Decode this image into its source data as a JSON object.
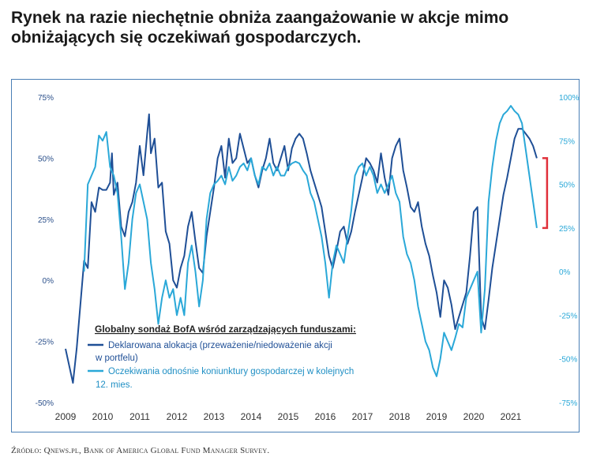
{
  "title": "Rynek na razie niechętnie obniża zaangażowanie w akcje mimo obniżających się oczekiwań gospodarczych.",
  "source": "Źródło: Qnews.pl, Bank of America Global Fund Manager Survey.",
  "colors": {
    "series1": "#1f4f96",
    "series2": "#2aa8d8",
    "bracket": "#e0303a",
    "border": "#4a7fb5"
  },
  "chart_data": {
    "type": "line",
    "title": "",
    "legend": {
      "title": "Globalny sondaż BofA wśród zarządzających funduszami:",
      "items": [
        {
          "line1": "Deklarowana alokacja (przeważenie/niedoważenie akcji",
          "line2": "w portfelu)"
        },
        {
          "line1": "Oczekiwania odnośnie koniunktury gospodarczej w kolejnych",
          "line2": "12. mies."
        }
      ],
      "placement": "bottom-left"
    },
    "x_ticks": [
      "2009",
      "2010",
      "2011",
      "2012",
      "2013",
      "2014",
      "2015",
      "2016",
      "2017",
      "2018",
      "2019",
      "2020",
      "2021"
    ],
    "y_left": {
      "label": "",
      "ylim": [
        -50,
        75
      ],
      "ticks": [
        "75%",
        "50%",
        "25%",
        "0%",
        "-25%",
        "-50%"
      ]
    },
    "y_right": {
      "label": "",
      "ylim": [
        -75,
        100
      ],
      "ticks": [
        "100%",
        "75%",
        "50%",
        "25%",
        "0%",
        "-25%",
        "-50%",
        "-75%"
      ]
    },
    "series": [
      {
        "name": "Deklarowana alokacja (przeważenie/niedoważenie akcji w portfelu)",
        "axis": "left",
        "points": [
          [
            2009.0,
            -28
          ],
          [
            2009.1,
            -35
          ],
          [
            2009.2,
            -42
          ],
          [
            2009.3,
            -28
          ],
          [
            2009.4,
            -10
          ],
          [
            2009.5,
            8
          ],
          [
            2009.6,
            5
          ],
          [
            2009.7,
            32
          ],
          [
            2009.8,
            28
          ],
          [
            2009.9,
            38
          ],
          [
            2010.0,
            37
          ],
          [
            2010.1,
            37
          ],
          [
            2010.2,
            40
          ],
          [
            2010.25,
            52
          ],
          [
            2010.3,
            35
          ],
          [
            2010.4,
            40
          ],
          [
            2010.5,
            22
          ],
          [
            2010.6,
            18
          ],
          [
            2010.7,
            28
          ],
          [
            2010.8,
            32
          ],
          [
            2010.9,
            40
          ],
          [
            2011.0,
            55
          ],
          [
            2011.1,
            43
          ],
          [
            2011.2,
            60
          ],
          [
            2011.25,
            68
          ],
          [
            2011.3,
            52
          ],
          [
            2011.4,
            58
          ],
          [
            2011.5,
            38
          ],
          [
            2011.6,
            40
          ],
          [
            2011.7,
            20
          ],
          [
            2011.8,
            15
          ],
          [
            2011.9,
            0
          ],
          [
            2012.0,
            -3
          ],
          [
            2012.1,
            5
          ],
          [
            2012.2,
            10
          ],
          [
            2012.3,
            22
          ],
          [
            2012.4,
            28
          ],
          [
            2012.5,
            16
          ],
          [
            2012.6,
            5
          ],
          [
            2012.7,
            3
          ],
          [
            2012.8,
            18
          ],
          [
            2012.9,
            28
          ],
          [
            2013.0,
            38
          ],
          [
            2013.1,
            50
          ],
          [
            2013.2,
            55
          ],
          [
            2013.3,
            42
          ],
          [
            2013.4,
            58
          ],
          [
            2013.5,
            48
          ],
          [
            2013.6,
            50
          ],
          [
            2013.7,
            60
          ],
          [
            2013.8,
            54
          ],
          [
            2013.9,
            48
          ],
          [
            2014.0,
            50
          ],
          [
            2014.1,
            43
          ],
          [
            2014.2,
            38
          ],
          [
            2014.3,
            45
          ],
          [
            2014.4,
            50
          ],
          [
            2014.5,
            58
          ],
          [
            2014.6,
            48
          ],
          [
            2014.7,
            45
          ],
          [
            2014.8,
            50
          ],
          [
            2014.9,
            55
          ],
          [
            2015.0,
            45
          ],
          [
            2015.1,
            54
          ],
          [
            2015.2,
            58
          ],
          [
            2015.3,
            60
          ],
          [
            2015.4,
            58
          ],
          [
            2015.5,
            52
          ],
          [
            2015.6,
            45
          ],
          [
            2015.7,
            40
          ],
          [
            2015.8,
            35
          ],
          [
            2015.9,
            30
          ],
          [
            2016.0,
            20
          ],
          [
            2016.1,
            10
          ],
          [
            2016.2,
            5
          ],
          [
            2016.3,
            12
          ],
          [
            2016.4,
            20
          ],
          [
            2016.5,
            22
          ],
          [
            2016.6,
            15
          ],
          [
            2016.7,
            20
          ],
          [
            2016.8,
            28
          ],
          [
            2016.9,
            35
          ],
          [
            2017.0,
            42
          ],
          [
            2017.1,
            50
          ],
          [
            2017.2,
            48
          ],
          [
            2017.3,
            45
          ],
          [
            2017.4,
            40
          ],
          [
            2017.5,
            52
          ],
          [
            2017.6,
            42
          ],
          [
            2017.7,
            35
          ],
          [
            2017.8,
            50
          ],
          [
            2017.9,
            55
          ],
          [
            2018.0,
            58
          ],
          [
            2018.1,
            45
          ],
          [
            2018.2,
            38
          ],
          [
            2018.3,
            30
          ],
          [
            2018.4,
            28
          ],
          [
            2018.5,
            32
          ],
          [
            2018.6,
            22
          ],
          [
            2018.7,
            15
          ],
          [
            2018.8,
            10
          ],
          [
            2018.9,
            2
          ],
          [
            2019.0,
            -5
          ],
          [
            2019.1,
            -15
          ],
          [
            2019.2,
            0
          ],
          [
            2019.3,
            -3
          ],
          [
            2019.4,
            -10
          ],
          [
            2019.5,
            -20
          ],
          [
            2019.6,
            -15
          ],
          [
            2019.7,
            -10
          ],
          [
            2019.8,
            -5
          ],
          [
            2019.9,
            10
          ],
          [
            2020.0,
            28
          ],
          [
            2020.1,
            30
          ],
          [
            2020.2,
            -15
          ],
          [
            2020.3,
            -20
          ],
          [
            2020.4,
            -8
          ],
          [
            2020.5,
            5
          ],
          [
            2020.6,
            15
          ],
          [
            2020.7,
            25
          ],
          [
            2020.8,
            35
          ],
          [
            2020.9,
            42
          ],
          [
            2021.0,
            50
          ],
          [
            2021.1,
            58
          ],
          [
            2021.2,
            62
          ],
          [
            2021.3,
            62
          ],
          [
            2021.4,
            60
          ],
          [
            2021.5,
            58
          ],
          [
            2021.6,
            55
          ],
          [
            2021.7,
            50
          ]
        ]
      },
      {
        "name": "Oczekiwania odnośnie koniunktury gospodarczej w kolejnych 12. mies.",
        "axis": "right",
        "points": [
          [
            2009.5,
            0
          ],
          [
            2009.6,
            50
          ],
          [
            2009.7,
            55
          ],
          [
            2009.8,
            60
          ],
          [
            2009.9,
            78
          ],
          [
            2010.0,
            75
          ],
          [
            2010.1,
            80
          ],
          [
            2010.2,
            60
          ],
          [
            2010.3,
            55
          ],
          [
            2010.4,
            45
          ],
          [
            2010.5,
            20
          ],
          [
            2010.6,
            -10
          ],
          [
            2010.7,
            5
          ],
          [
            2010.8,
            30
          ],
          [
            2010.9,
            45
          ],
          [
            2011.0,
            50
          ],
          [
            2011.1,
            40
          ],
          [
            2011.2,
            30
          ],
          [
            2011.3,
            5
          ],
          [
            2011.4,
            -10
          ],
          [
            2011.5,
            -30
          ],
          [
            2011.6,
            -15
          ],
          [
            2011.7,
            -5
          ],
          [
            2011.8,
            -15
          ],
          [
            2011.9,
            -10
          ],
          [
            2012.0,
            -25
          ],
          [
            2012.1,
            -15
          ],
          [
            2012.2,
            -25
          ],
          [
            2012.3,
            5
          ],
          [
            2012.4,
            15
          ],
          [
            2012.5,
            0
          ],
          [
            2012.6,
            -20
          ],
          [
            2012.7,
            -5
          ],
          [
            2012.8,
            30
          ],
          [
            2012.9,
            45
          ],
          [
            2013.0,
            50
          ],
          [
            2013.1,
            52
          ],
          [
            2013.2,
            55
          ],
          [
            2013.3,
            50
          ],
          [
            2013.4,
            60
          ],
          [
            2013.5,
            52
          ],
          [
            2013.6,
            55
          ],
          [
            2013.7,
            60
          ],
          [
            2013.8,
            62
          ],
          [
            2013.9,
            58
          ],
          [
            2014.0,
            65
          ],
          [
            2014.1,
            55
          ],
          [
            2014.2,
            50
          ],
          [
            2014.3,
            60
          ],
          [
            2014.4,
            58
          ],
          [
            2014.5,
            62
          ],
          [
            2014.6,
            55
          ],
          [
            2014.7,
            60
          ],
          [
            2014.8,
            55
          ],
          [
            2014.9,
            55
          ],
          [
            2015.0,
            60
          ],
          [
            2015.1,
            62
          ],
          [
            2015.2,
            63
          ],
          [
            2015.3,
            62
          ],
          [
            2015.4,
            58
          ],
          [
            2015.5,
            55
          ],
          [
            2015.6,
            45
          ],
          [
            2015.7,
            40
          ],
          [
            2015.8,
            30
          ],
          [
            2015.9,
            20
          ],
          [
            2016.0,
            5
          ],
          [
            2016.1,
            -15
          ],
          [
            2016.2,
            5
          ],
          [
            2016.3,
            15
          ],
          [
            2016.4,
            10
          ],
          [
            2016.5,
            5
          ],
          [
            2016.6,
            20
          ],
          [
            2016.7,
            35
          ],
          [
            2016.8,
            55
          ],
          [
            2016.9,
            60
          ],
          [
            2017.0,
            62
          ],
          [
            2017.1,
            55
          ],
          [
            2017.2,
            60
          ],
          [
            2017.3,
            55
          ],
          [
            2017.4,
            45
          ],
          [
            2017.5,
            50
          ],
          [
            2017.6,
            45
          ],
          [
            2017.7,
            50
          ],
          [
            2017.8,
            55
          ],
          [
            2017.9,
            45
          ],
          [
            2018.0,
            40
          ],
          [
            2018.1,
            20
          ],
          [
            2018.2,
            10
          ],
          [
            2018.3,
            5
          ],
          [
            2018.4,
            -5
          ],
          [
            2018.5,
            -20
          ],
          [
            2018.6,
            -30
          ],
          [
            2018.7,
            -40
          ],
          [
            2018.8,
            -45
          ],
          [
            2018.9,
            -55
          ],
          [
            2019.0,
            -60
          ],
          [
            2019.1,
            -50
          ],
          [
            2019.2,
            -35
          ],
          [
            2019.3,
            -40
          ],
          [
            2019.4,
            -45
          ],
          [
            2019.5,
            -38
          ],
          [
            2019.6,
            -30
          ],
          [
            2019.7,
            -32
          ],
          [
            2019.8,
            -15
          ],
          [
            2019.9,
            -10
          ],
          [
            2020.0,
            -5
          ],
          [
            2020.1,
            0
          ],
          [
            2020.2,
            -35
          ],
          [
            2020.3,
            -10
          ],
          [
            2020.4,
            40
          ],
          [
            2020.5,
            60
          ],
          [
            2020.6,
            75
          ],
          [
            2020.7,
            85
          ],
          [
            2020.8,
            90
          ],
          [
            2020.9,
            92
          ],
          [
            2021.0,
            95
          ],
          [
            2021.1,
            92
          ],
          [
            2021.2,
            90
          ],
          [
            2021.3,
            85
          ],
          [
            2021.4,
            70
          ],
          [
            2021.5,
            55
          ],
          [
            2021.6,
            40
          ],
          [
            2021.7,
            25
          ]
        ]
      }
    ]
  }
}
